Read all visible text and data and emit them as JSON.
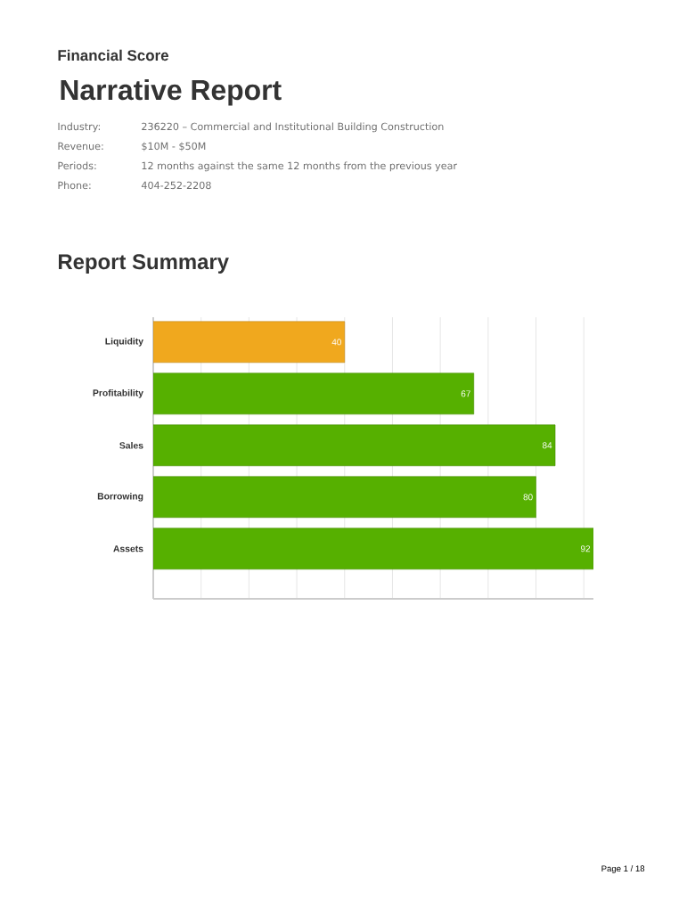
{
  "chart_data": {
    "type": "bar",
    "orientation": "horizontal",
    "title": "Report Summary",
    "annotations": [
      "Financial Score",
      "Narrative Report",
      "Industry:",
      "236220 – Commercial and Institutional Building Construction",
      "Revenue:",
      "$10M - $50M",
      "Periods:",
      "12 months against the same 12 months from the previous year",
      "Phone:",
      "404-252-2208",
      "Page 1 / 18"
    ],
    "categories": [
      "Liquidity",
      "Profitability",
      "Sales",
      "Borrowing",
      "Assets"
    ],
    "values": [
      40,
      67,
      84,
      80,
      92
    ],
    "colors": [
      "#f0a81e",
      "#56b000",
      "#56b000",
      "#56b000",
      "#56b000"
    ],
    "xlim": [
      0,
      92
    ],
    "xticks": [
      {
        "value": 10,
        "label": null
      },
      {
        "value": 20,
        "label": null
      },
      {
        "value": 30,
        "label": null
      },
      {
        "value": 40,
        "label": null
      },
      {
        "value": 50,
        "label": null
      },
      {
        "value": 60,
        "label": null
      },
      {
        "value": 70,
        "label": null
      },
      {
        "value": 80,
        "label": null
      },
      {
        "value": 90,
        "label": null
      }
    ],
    "grid": "x",
    "tick_labels": "y",
    "data_labels": true
  }
}
